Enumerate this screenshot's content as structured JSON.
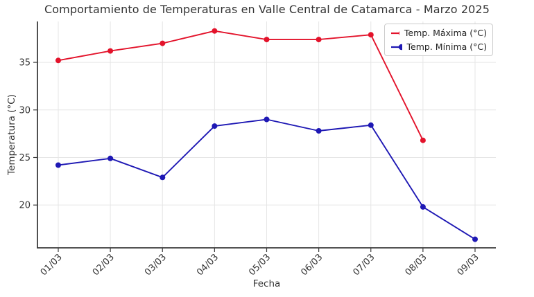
{
  "title": "Comportamiento de Temperaturas en Valle Central de Catamarca - Marzo 2025",
  "chart_data": {
    "type": "line",
    "title": "Comportamiento de Temperaturas en Valle Central de Catamarca - Marzo 2025",
    "xlabel": "Fecha",
    "ylabel": "Temperatura (°C)",
    "categories": [
      "01/03",
      "02/03",
      "03/03",
      "04/03",
      "05/03",
      "06/03",
      "07/03",
      "08/03",
      "09/03"
    ],
    "series": [
      {
        "name": "Temp. Máxima (°C)",
        "color": "#e3132b",
        "values": [
          35.2,
          36.2,
          37.0,
          38.3,
          37.4,
          37.4,
          37.9,
          26.8,
          null
        ]
      },
      {
        "name": "Temp. Mínima (°C)",
        "color": "#1e18b4",
        "values": [
          24.2,
          24.9,
          22.9,
          28.3,
          29.0,
          27.8,
          28.4,
          19.8,
          16.4
        ]
      }
    ],
    "yticks": [
      20,
      25,
      30,
      35
    ],
    "ylim": [
      15.5,
      39.3
    ],
    "grid": true,
    "legend_position": "upper right",
    "x_tick_rotation": 45
  },
  "colors": {
    "grid": "#e6e6e6",
    "axis": "#3c3c3c",
    "text": "#333333"
  }
}
